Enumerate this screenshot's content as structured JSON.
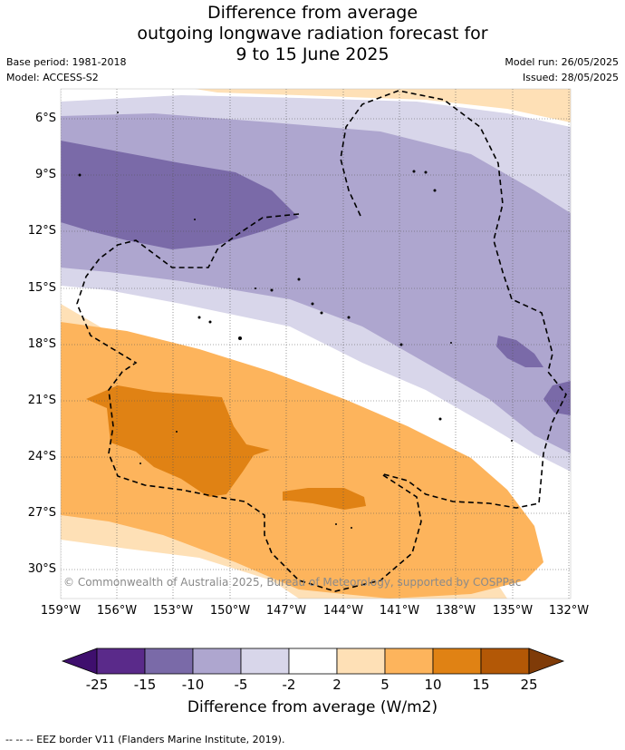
{
  "title": {
    "line1": "Difference from average",
    "line2": "outgoing longwave radiation forecast for",
    "line3": "9 to 15 June 2025"
  },
  "meta": {
    "base_period": "Base period: 1981-2018",
    "model": "Model: ACCESS-S2",
    "model_run": "Model run: 26/05/2025",
    "issued": "Issued: 28/05/2025"
  },
  "map": {
    "lat_labels": [
      "6°S",
      "9°S",
      "12°S",
      "15°S",
      "18°S",
      "21°S",
      "24°S",
      "27°S",
      "30°S"
    ],
    "lon_labels": [
      "159°W",
      "156°W",
      "153°W",
      "150°W",
      "147°W",
      "144°W",
      "141°W",
      "138°W",
      "135°W",
      "132°W"
    ],
    "copyright": "© Commonwealth of Australia 2025, Bureau of Meteorology, supported by COSPPac",
    "colors": {
      "neg25": "#3f0f6e",
      "neg15_25": "#5a2a8a",
      "neg10_15": "#7a6aa8",
      "neg5_10": "#aea6cf",
      "neg2_5": "#d8d6ea",
      "neutral": "#ffffff",
      "pos2_5": "#fee0b6",
      "pos5_10": "#fdb45c",
      "pos10_15": "#e08214",
      "pos15_25": "#b35806",
      "pos25": "#7f3b08"
    }
  },
  "colorbar": {
    "ticks": [
      "-25",
      "-15",
      "-10",
      "-5",
      "-2",
      "2",
      "5",
      "10",
      "15",
      "25"
    ],
    "label": "Difference from average (W/m2)"
  },
  "footnote": "-- -- -- EEZ border V11 (Flanders Marine Institute, 2019)."
}
